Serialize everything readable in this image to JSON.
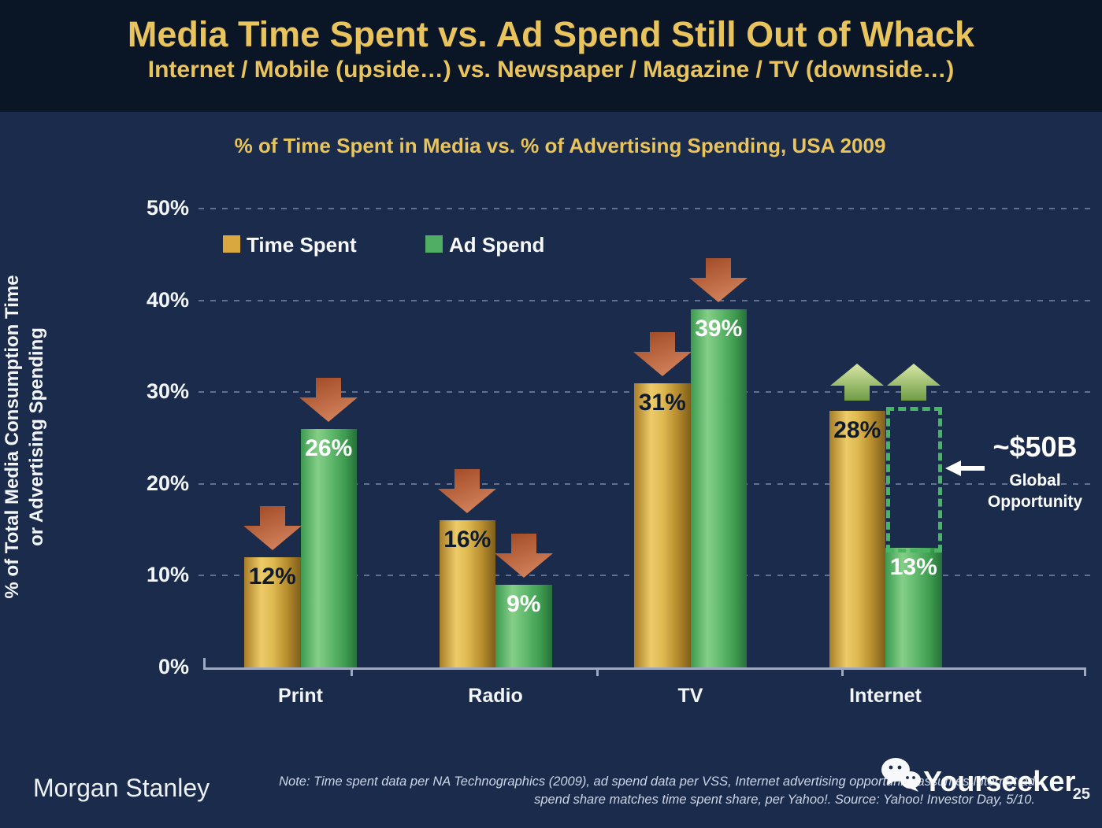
{
  "slide": {
    "title": "Media Time Spent vs. Ad Spend Still Out of Whack",
    "subtitle": "Internet / Mobile (upside…) vs. Newspaper / Magazine / TV (downside…)",
    "page_number": "25"
  },
  "footer": {
    "brand": "Morgan Stanley",
    "note_line1": "Note: Time spent data per NA Technographics (2009), ad spend data per VSS, Internet advertising opportunity assumes Internet ad",
    "note_line2": "spend share matches time spent share, per Yahoo!. Source: Yahoo! Investor Day, 5/10.",
    "watermark": "Yourseeker"
  },
  "chart_data": {
    "type": "bar",
    "title": "% of Time Spent in Media vs. % of Advertising Spending, USA 2009",
    "categories": [
      "Print",
      "Radio",
      "TV",
      "Internet"
    ],
    "series": [
      {
        "name": "Time Spent",
        "color": "#d9a940",
        "label_color": "#0e1a2e",
        "values": [
          12,
          16,
          31,
          28
        ]
      },
      {
        "name": "Ad Spend",
        "color": "#4fae63",
        "label_color": "#ffffff",
        "values": [
          26,
          9,
          39,
          13
        ]
      }
    ],
    "value_suffix": "%",
    "ylabel_line1": "% of Total Media Consumption Time",
    "ylabel_line2": "or Advertising Spending",
    "ylim": [
      0,
      50
    ],
    "yticks": [
      "0%",
      "10%",
      "20%",
      "30%",
      "40%",
      "50%"
    ],
    "grid": "horizontal-dashed",
    "legend_position": "inside-top-left",
    "trend_arrows": [
      {
        "category": "Print",
        "directions": [
          "down",
          "down"
        ]
      },
      {
        "category": "Radio",
        "directions": [
          "down",
          "down"
        ]
      },
      {
        "category": "TV",
        "directions": [
          "down",
          "down"
        ]
      },
      {
        "category": "Internet",
        "directions": [
          "up",
          "up"
        ]
      }
    ],
    "annotation": {
      "line1": "~$50B",
      "line2": "Global",
      "line3": "Opportunity"
    },
    "colors": {
      "down_arrow_dark": "#9e4722",
      "down_arrow_light": "#d0805a",
      "up_arrow_light": "#d9e7a6",
      "up_arrow_dark": "#6f9c45",
      "dotted_box": "#46b564",
      "accent_gold": "#e9c35c"
    }
  }
}
